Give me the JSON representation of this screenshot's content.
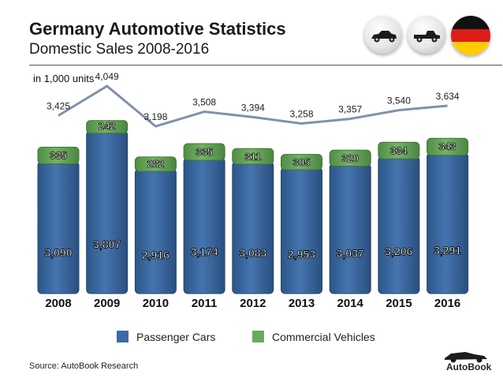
{
  "header": {
    "title": "Germany Automotive Statistics",
    "subtitle": "Domestic Sales 2008-2016",
    "units": "in 1,000 units"
  },
  "icons": [
    "sedan-car-icon",
    "pickup-truck-icon",
    "germany-flag-icon",
    "autobook-sports-car-icon"
  ],
  "colors": {
    "passenger": "#3d6aa3",
    "commercial": "#6aaa5c",
    "total_line": "#8092ab",
    "flag": [
      "#111111",
      "#dd1c1a",
      "#ffcc00"
    ]
  },
  "chart_data": {
    "type": "bar",
    "stacked": true,
    "categories": [
      "2008",
      "2009",
      "2010",
      "2011",
      "2012",
      "2013",
      "2014",
      "2015",
      "2016"
    ],
    "series": [
      {
        "name": "Passenger Cars",
        "values": [
          3090,
          3807,
          2916,
          3174,
          3083,
          2953,
          3037,
          3206,
          3291
        ]
      },
      {
        "name": "Commercial Vehicles",
        "values": [
          335,
          242,
          282,
          335,
          311,
          305,
          320,
          334,
          343
        ]
      }
    ],
    "totals": [
      3425,
      4049,
      3198,
      3508,
      3394,
      3258,
      3357,
      3540,
      3634
    ],
    "passenger_labels": [
      "3,090",
      "3,807",
      "2,916",
      "3,174",
      "3,083",
      "2,953",
      "3,037",
      "3,206",
      "3,291"
    ],
    "commercial_labels": [
      "335",
      "242",
      "282",
      "335",
      "311",
      "305",
      "320",
      "334",
      "343"
    ],
    "total_labels": [
      "3,425",
      "4,049",
      "3,198",
      "3,508",
      "3,394",
      "3,258",
      "3,357",
      "3,540",
      "3,634"
    ],
    "legend_position": "bottom"
  },
  "legend": {
    "passenger_label": "Passenger Cars",
    "commercial_label": "Commercial Vehicles"
  },
  "footer": {
    "source": "Source: AutoBook Research",
    "logo_text": "AutoBook"
  }
}
